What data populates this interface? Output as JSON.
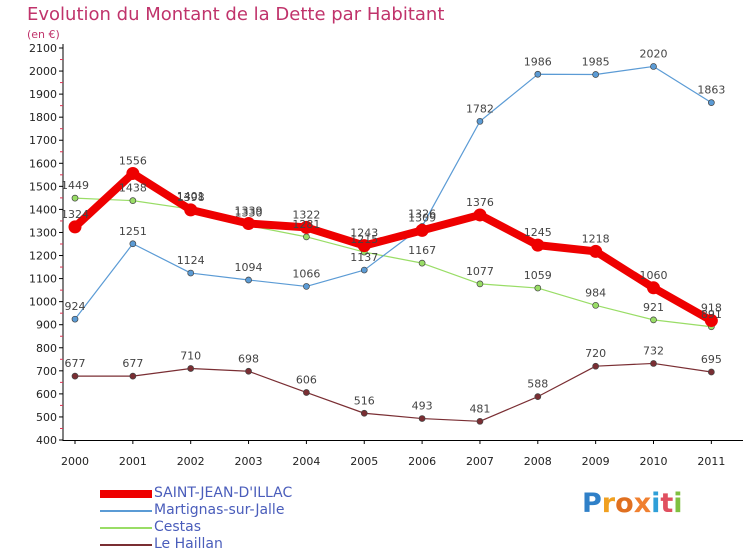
{
  "title": "Evolution du Montant de la Dette par Habitant",
  "subtitle": "(en €)",
  "chart_data": {
    "type": "line",
    "title": "Evolution du Montant de la Dette par Habitant",
    "subtitle": "(en €)",
    "x": [
      "2000",
      "2001",
      "2002",
      "2003",
      "2004",
      "2005",
      "2006",
      "2007",
      "2008",
      "2009",
      "2010",
      "2011"
    ],
    "ylim": [
      400,
      2100
    ],
    "yticks": [
      400,
      500,
      600,
      700,
      800,
      900,
      1000,
      1100,
      1200,
      1300,
      1400,
      1500,
      1600,
      1700,
      1800,
      1900,
      2000,
      2100
    ],
    "grid": false,
    "legend_position": "bottom-left",
    "series": [
      {
        "name": "SAINT-JEAN-D'ILLAC",
        "color": "#ee0000",
        "values": [
          1324,
          1556,
          1398,
          1339,
          1322,
          1243,
          1309,
          1376,
          1245,
          1218,
          1060,
          918
        ]
      },
      {
        "name": "Martignas-sur-Jalle",
        "color": "#5b9bd5",
        "values": [
          924,
          1251,
          1124,
          1094,
          1066,
          1137,
          1326,
          1782,
          1986,
          1985,
          2020,
          1863
        ]
      },
      {
        "name": "Cestas",
        "color": "#99dd66",
        "values": [
          1449,
          1438,
          1401,
          1330,
          1281,
          1215,
          1167,
          1077,
          1059,
          984,
          921,
          891
        ]
      },
      {
        "name": "Le Haillan",
        "color": "#7a2e33",
        "values": [
          677,
          677,
          710,
          698,
          606,
          516,
          493,
          481,
          588,
          720,
          732,
          695
        ]
      }
    ]
  },
  "legend": {
    "items": [
      {
        "label": "SAINT-JEAN-D'ILLAC",
        "color": "#ee0000"
      },
      {
        "label": "Martignas-sur-Jalle",
        "color": "#5b9bd5"
      },
      {
        "label": "Cestas",
        "color": "#99dd66"
      },
      {
        "label": "Le Haillan",
        "color": "#7a2e33"
      }
    ]
  },
  "logo": {
    "text": "Proxiti",
    "letter_colors": [
      "#2f80c8",
      "#f0a020",
      "#e07020",
      "#f08030",
      "#2f9fd8",
      "#e05060",
      "#80c040"
    ]
  }
}
